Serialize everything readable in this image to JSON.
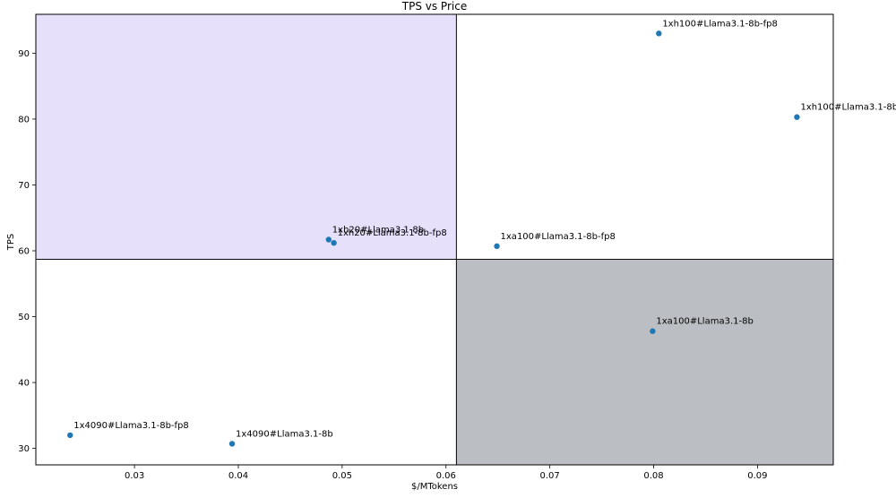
{
  "chart_data": {
    "type": "scatter",
    "title": "TPS vs Price",
    "xlabel": "$/MTokens",
    "ylabel": "TPS",
    "xlim": [
      0.0205,
      0.0973
    ],
    "ylim": [
      27.5,
      95.9
    ],
    "xticks": [
      0.03,
      0.04,
      0.05,
      0.06,
      0.07,
      0.08,
      0.09
    ],
    "xtick_labels": [
      "0.03",
      "0.04",
      "0.05",
      "0.06",
      "0.07",
      "0.08",
      "0.09"
    ],
    "yticks": [
      30,
      40,
      50,
      60,
      70,
      80,
      90
    ],
    "ytick_labels": [
      "30",
      "40",
      "50",
      "60",
      "70",
      "80",
      "90"
    ],
    "grid": false,
    "divider": {
      "x": 0.061,
      "y": 58.7
    },
    "quadrants": [
      {
        "name": "top-left",
        "color": "#e6e0fb"
      },
      {
        "name": "bottom-right",
        "color": "#bbbec2"
      }
    ],
    "point_color": "#1f77b4",
    "points": [
      {
        "label": "1xh100#Llama3.1-8b-fp8",
        "x": 0.0805,
        "y": 93.0
      },
      {
        "label": "1xh100#Llama3.1-8b",
        "x": 0.0938,
        "y": 80.3
      },
      {
        "label": "1xh20#Llama3.1-8b",
        "x": 0.0487,
        "y": 61.7
      },
      {
        "label": "1xh20#Llama3.1-8b-fp8",
        "x": 0.0492,
        "y": 61.2
      },
      {
        "label": "1xa100#Llama3.1-8b-fp8",
        "x": 0.0649,
        "y": 60.7
      },
      {
        "label": "1xa100#Llama3.1-8b",
        "x": 0.0799,
        "y": 47.8
      },
      {
        "label": "1x4090#Llama3.1-8b-fp8",
        "x": 0.0238,
        "y": 32.0
      },
      {
        "label": "1x4090#Llama3.1-8b",
        "x": 0.0394,
        "y": 30.7
      }
    ]
  }
}
